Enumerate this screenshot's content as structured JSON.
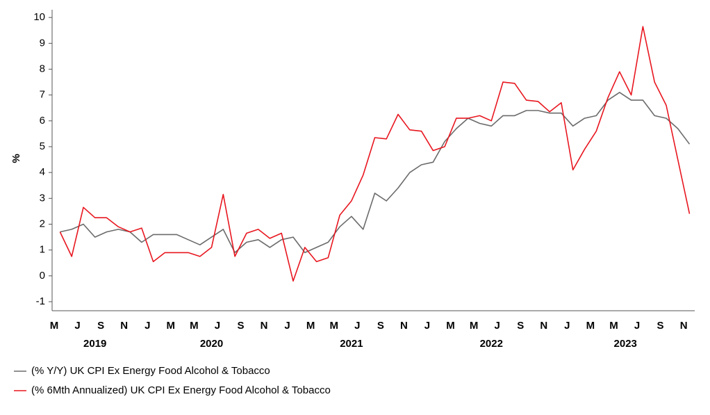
{
  "chart_data": {
    "type": "line",
    "y_label": "%",
    "x": [
      "2019-05",
      "2019-06",
      "2019-07",
      "2019-08",
      "2019-09",
      "2019-10",
      "2019-11",
      "2019-12",
      "2020-01",
      "2020-02",
      "2020-03",
      "2020-04",
      "2020-05",
      "2020-06",
      "2020-07",
      "2020-08",
      "2020-09",
      "2020-10",
      "2020-11",
      "2020-12",
      "2021-01",
      "2021-02",
      "2021-03",
      "2021-04",
      "2021-05",
      "2021-06",
      "2021-07",
      "2021-08",
      "2021-09",
      "2021-10",
      "2021-11",
      "2021-12",
      "2022-01",
      "2022-02",
      "2022-03",
      "2022-04",
      "2022-05",
      "2022-06",
      "2022-07",
      "2022-08",
      "2022-09",
      "2022-10",
      "2022-11",
      "2022-12",
      "2023-01",
      "2023-02",
      "2023-03",
      "2023-04",
      "2023-05",
      "2023-06",
      "2023-07",
      "2023-08",
      "2023-09",
      "2023-10",
      "2023-11"
    ],
    "categories": [
      "M",
      null,
      "J",
      null,
      "S",
      null,
      "N",
      null,
      "J",
      null,
      "M",
      null,
      "M",
      null,
      "J",
      null,
      "S",
      null,
      "N",
      null,
      "J",
      null,
      "M",
      null,
      "M",
      null,
      "J",
      null,
      "S",
      null,
      "N",
      null,
      "J",
      null,
      "M",
      null,
      "M",
      null,
      "J",
      null,
      "S",
      null,
      "N",
      null,
      "J",
      null,
      "M",
      null,
      "M",
      null,
      "J",
      null,
      "S",
      null,
      "N"
    ],
    "years": [
      "2019",
      "2020",
      "2021",
      "2022",
      "2023"
    ],
    "series": [
      {
        "name": "(% Y/Y) UK CPI Ex Energy Food Alcohol & Tobacco",
        "color": "#6b6b6b",
        "values": [
          1.7,
          1.8,
          2.0,
          1.5,
          1.7,
          1.8,
          1.7,
          1.3,
          1.6,
          1.6,
          1.6,
          1.4,
          1.2,
          1.5,
          1.8,
          0.9,
          1.3,
          1.4,
          1.1,
          1.4,
          1.5,
          0.9,
          1.1,
          1.3,
          1.9,
          2.3,
          1.8,
          3.2,
          2.9,
          3.4,
          4.0,
          4.3,
          4.4,
          5.2,
          5.7,
          6.1,
          5.9,
          5.8,
          6.2,
          6.2,
          6.4,
          6.4,
          6.3,
          6.3,
          5.8,
          6.1,
          6.2,
          6.8,
          7.1,
          6.8,
          6.8,
          6.2,
          6.1,
          5.7,
          5.1
        ]
      },
      {
        "name": "(% 6Mth Annualized) UK CPI Ex Energy Food Alcohol & Tobacco",
        "color": "#e8161f",
        "values": [
          1.7,
          0.75,
          2.65,
          2.25,
          2.25,
          1.9,
          1.7,
          1.85,
          0.55,
          0.9,
          0.9,
          0.9,
          0.75,
          1.1,
          3.15,
          0.75,
          1.65,
          1.8,
          1.45,
          1.65,
          -0.2,
          1.1,
          0.55,
          0.7,
          2.35,
          2.9,
          3.9,
          5.35,
          5.3,
          6.25,
          5.65,
          5.6,
          4.85,
          5.0,
          6.1,
          6.1,
          6.2,
          6.0,
          7.5,
          7.45,
          6.8,
          6.75,
          6.35,
          6.7,
          4.1,
          4.9,
          5.6,
          6.9,
          7.9,
          7.0,
          9.65,
          7.5,
          6.6,
          4.5,
          2.4
        ]
      }
    ],
    "ylim": [
      -1.35,
      10.3
    ],
    "yticks": [
      -1,
      0,
      1,
      2,
      3,
      4,
      5,
      6,
      7,
      8,
      9,
      10
    ],
    "grid": false
  }
}
